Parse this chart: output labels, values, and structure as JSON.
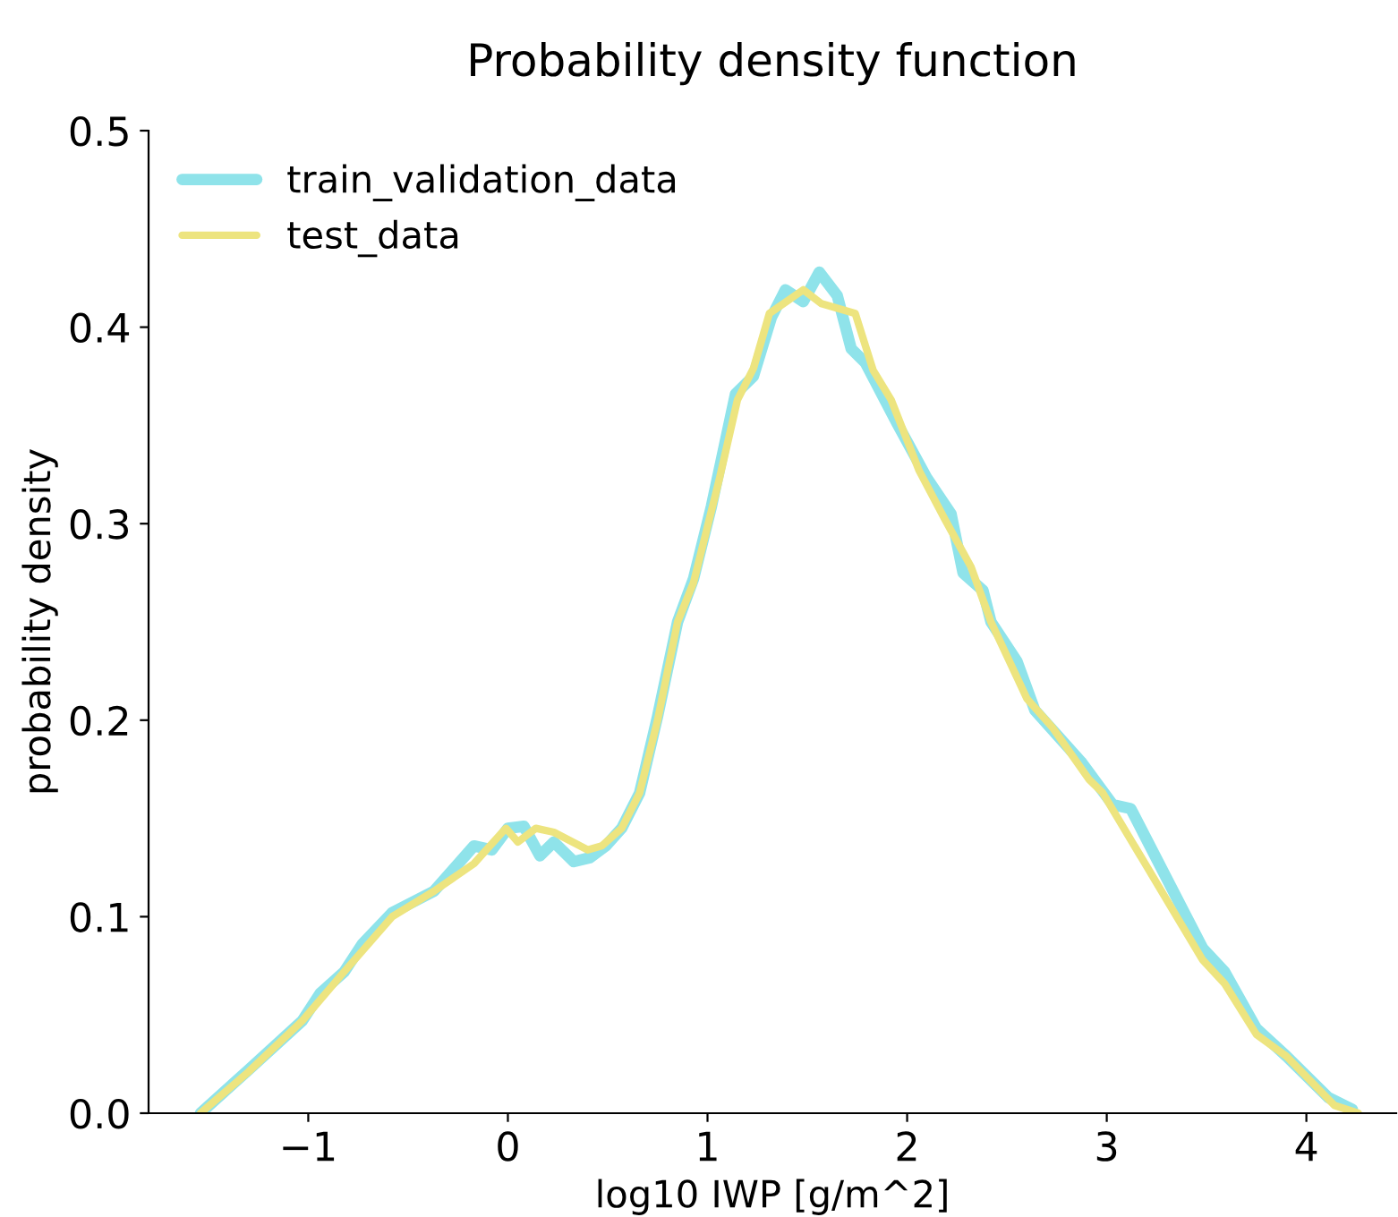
{
  "chart_data": {
    "type": "line",
    "title": "Probability density function",
    "xlabel": "log10 IWP [g/m^2]",
    "ylabel": "probability density",
    "xlim": [
      -1.8,
      4.45
    ],
    "ylim": [
      0,
      0.5
    ],
    "xticks": [
      {
        "value": -1,
        "label": "−1"
      },
      0,
      1,
      2,
      3,
      4
    ],
    "yticks": [
      {
        "value": 0,
        "label": "0.0"
      },
      0.1,
      0.2,
      0.3,
      0.4,
      0.5
    ],
    "grid": false,
    "legend": "top left",
    "marker": "none",
    "line_style": "solid",
    "series": [
      {
        "name": "train_validation_data",
        "color": "#8fe3ea",
        "x": [
          -1.54,
          -1.3,
          -1.03,
          -0.94,
          -0.82,
          -0.73,
          -0.58,
          -0.37,
          -0.17,
          -0.08,
          0,
          0.08,
          0.16,
          0.23,
          0.33,
          0.41,
          0.49,
          0.57,
          0.66,
          0.75,
          0.85,
          0.93,
          1.02,
          1.14,
          1.23,
          1.32,
          1.39,
          1.48,
          1.56,
          1.65,
          1.72,
          1.79,
          1.95,
          2.1,
          2.22,
          2.28,
          2.38,
          2.42,
          2.55,
          2.64,
          2.87,
          3.03,
          3.12,
          3.48,
          3.59,
          3.75,
          3.9,
          4.11,
          4.23
        ],
        "values": [
          0,
          0.022,
          0.047,
          0.061,
          0.072,
          0.086,
          0.102,
          0.113,
          0.136,
          0.134,
          0.145,
          0.146,
          0.131,
          0.138,
          0.128,
          0.13,
          0.136,
          0.145,
          0.163,
          0.202,
          0.25,
          0.272,
          0.309,
          0.366,
          0.375,
          0.405,
          0.419,
          0.413,
          0.428,
          0.416,
          0.389,
          0.382,
          0.351,
          0.323,
          0.305,
          0.275,
          0.266,
          0.25,
          0.23,
          0.205,
          0.179,
          0.157,
          0.155,
          0.084,
          0.072,
          0.043,
          0.029,
          0.008,
          0.002
        ]
      },
      {
        "name": "test_data",
        "color": "#ede47f",
        "x": [
          -1.54,
          -1.3,
          -1.03,
          -0.82,
          -0.58,
          -0.37,
          -0.17,
          -0.01,
          0.05,
          0.14,
          0.23,
          0.4,
          0.47,
          0.57,
          0.66,
          0.75,
          0.85,
          0.93,
          1.06,
          1.15,
          1.23,
          1.31,
          1.48,
          1.57,
          1.74,
          1.83,
          1.92,
          2.06,
          2.19,
          2.32,
          2.42,
          2.6,
          2.73,
          2.91,
          2.98,
          3.48,
          3.59,
          3.75,
          3.9,
          4.14,
          4.26
        ],
        "values": [
          0,
          0.021,
          0.047,
          0.072,
          0.1,
          0.113,
          0.127,
          0.145,
          0.138,
          0.145,
          0.143,
          0.134,
          0.136,
          0.145,
          0.163,
          0.2,
          0.25,
          0.27,
          0.323,
          0.363,
          0.379,
          0.407,
          0.419,
          0.412,
          0.407,
          0.378,
          0.363,
          0.327,
          0.302,
          0.278,
          0.25,
          0.211,
          0.196,
          0.17,
          0.163,
          0.078,
          0.066,
          0.04,
          0.029,
          0.004,
          0
        ]
      }
    ]
  }
}
